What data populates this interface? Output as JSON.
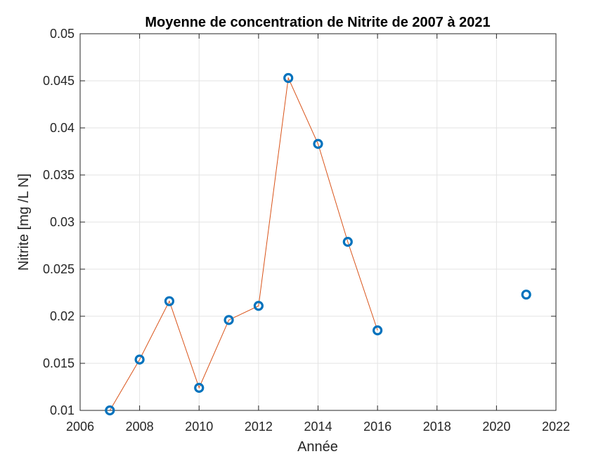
{
  "chart_data": {
    "type": "line",
    "title": "Moyenne de concentration de Nitrite de 2007 à 2021",
    "xlabel": "Année",
    "ylabel": "Nitrite [mg /L N]",
    "xlim": [
      2006,
      2022
    ],
    "ylim": [
      0.01,
      0.05
    ],
    "xticks": [
      "2006",
      "2008",
      "2010",
      "2012",
      "2014",
      "2016",
      "2018",
      "2020",
      "2022"
    ],
    "yticks": [
      "0.01",
      "0.015",
      "0.02",
      "0.025",
      "0.03",
      "0.035",
      "0.04",
      "0.045",
      "0.05"
    ],
    "grid": true,
    "series": [
      {
        "marker": "circle",
        "marker_color": "#0072BD",
        "line_color": "#D95319",
        "points": [
          {
            "x": 2007,
            "y": 0.01
          },
          {
            "x": 2008,
            "y": 0.0154
          },
          {
            "x": 2009,
            "y": 0.0216
          },
          {
            "x": 2010,
            "y": 0.0124
          },
          {
            "x": 2011,
            "y": 0.0196
          },
          {
            "x": 2012,
            "y": 0.0211
          },
          {
            "x": 2013,
            "y": 0.0453
          },
          {
            "x": 2014,
            "y": 0.0383
          },
          {
            "x": 2015,
            "y": 0.0279
          },
          {
            "x": 2016,
            "y": 0.0185
          },
          {
            "x": 2021,
            "y": 0.0223
          }
        ],
        "connected_segments": [
          [
            2007,
            2008,
            2009,
            2010,
            2011,
            2012,
            2013,
            2014,
            2015,
            2016
          ]
        ]
      }
    ]
  }
}
